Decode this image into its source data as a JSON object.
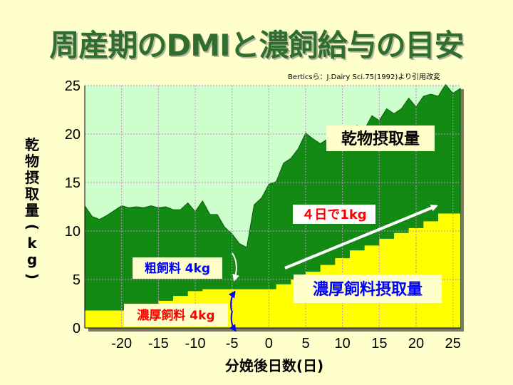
{
  "title": "周産期のDMIと濃飼給与の目安",
  "source_note": "Berticsら：J.Dairy Sci.75(1992)より引用改変",
  "chart_data": {
    "type": "area",
    "xlabel": "分娩後日数(日)",
    "ylabel": "乾物摂取量(kg)",
    "xlim": [
      -25,
      26
    ],
    "ylim": [
      0,
      25
    ],
    "x_ticks": [
      -20,
      -15,
      -10,
      -5,
      0,
      5,
      10,
      15,
      20,
      25
    ],
    "x_tick_labels": [
      "-20",
      "-15",
      "-10",
      "-5",
      "0",
      "5",
      "10",
      "15",
      "20",
      "25"
    ],
    "y_ticks": [
      0,
      5,
      10,
      15,
      20,
      25
    ],
    "y_tick_labels": [
      "0",
      "5",
      "10",
      "15",
      "20",
      "25"
    ],
    "grid": true,
    "series": [
      {
        "name": "乾物摂取量",
        "style": "area",
        "x": [
          -25,
          -24,
          -23,
          -22,
          -21,
          -20,
          -19,
          -18,
          -17,
          -16,
          -15,
          -14,
          -13,
          -12,
          -11,
          -10,
          -9,
          -8,
          -7,
          -6,
          -5,
          -4,
          -3,
          -2,
          -1,
          0,
          1,
          2,
          3,
          4,
          5,
          6,
          7,
          8,
          9,
          10,
          11,
          12,
          13,
          14,
          15,
          16,
          17,
          18,
          19,
          20,
          21,
          22,
          23,
          24,
          25,
          26
        ],
        "y": [
          12.6,
          11.5,
          11.2,
          11.6,
          12.1,
          12.6,
          12.4,
          12.5,
          12.4,
          12.6,
          12.4,
          12.5,
          12.2,
          12.2,
          12.9,
          12.0,
          13.1,
          11.7,
          11.7,
          10.4,
          9.7,
          8.7,
          8.3,
          12.7,
          13.4,
          14.8,
          15.1,
          17.0,
          17.5,
          18.5,
          20.1,
          19.5,
          19.0,
          19.5,
          20.8,
          19.6,
          20.4,
          20.9,
          20.5,
          21.9,
          21.4,
          22.6,
          22.1,
          22.6,
          23.7,
          22.8,
          23.9,
          24.1,
          23.9,
          25.1,
          24.2,
          24.7
        ]
      },
      {
        "name": "濃厚飼料摂取量",
        "style": "step",
        "x": [
          -25,
          -21,
          -19,
          -17,
          -15,
          -13,
          -11,
          -9,
          -7,
          -5,
          -3,
          -1,
          1,
          3,
          5,
          7,
          9,
          11,
          13,
          15,
          17,
          19,
          21,
          23,
          26
        ],
        "y": [
          1.8,
          1.8,
          1.8,
          2.3,
          2.8,
          3.3,
          3.8,
          4.0,
          4.0,
          4.0,
          4.0,
          4.0,
          4.5,
          5.0,
          5.8,
          6.5,
          7.2,
          8.0,
          8.5,
          9.2,
          9.8,
          10.3,
          11.0,
          11.8,
          11.8
        ]
      }
    ],
    "colors": {
      "plot_background": "#ccffcc",
      "dmi_area": "#138a13",
      "concentrate_area": "#ffff00",
      "gridline": "#cc88cc",
      "arrow_white": "#ffffff",
      "arrow_blue": "#0000ff",
      "title": "#2f6e2f"
    },
    "annotations": [
      {
        "text": "乾物摂取量",
        "color": "#000000",
        "box": "#ffffcc"
      },
      {
        "text": "４日で1kg",
        "color": "#ff0000",
        "box": "#ffffff"
      },
      {
        "text": "粗飼料 4kg",
        "color": "#0000ff",
        "box": "#ffffcc"
      },
      {
        "text": "濃厚飼料摂取量",
        "color": "#0000ff",
        "box": "#ffffcc"
      },
      {
        "text": "濃厚飼料 4kg",
        "color": "#ff0000",
        "box": "#ffffcc"
      }
    ]
  }
}
